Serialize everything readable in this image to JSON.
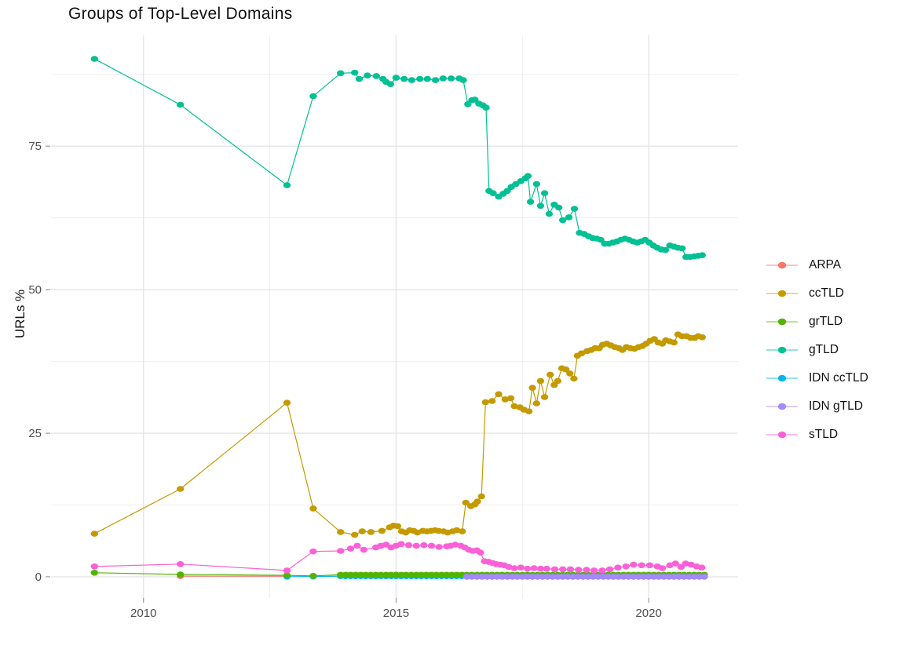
{
  "title": "Groups of Top-Level Domains",
  "chart_data": {
    "type": "line",
    "title": "Groups of Top-Level Domains",
    "xlabel": "",
    "ylabel": "URLs %",
    "grid": true,
    "legend_position": "right",
    "xlim": [
      2008.17,
      2021.77
    ],
    "ylim": [
      -3.7,
      94.3
    ],
    "x_ticks": [
      2010,
      2015,
      2020
    ],
    "x_minor_ticks": [
      2012.5,
      2017.5
    ],
    "y_ticks": [
      0,
      25,
      50,
      75
    ],
    "y_minor_ticks": [
      12.5,
      37.5,
      62.5,
      87.5
    ],
    "colors": {
      "grid_major": "#e5e5e5",
      "grid_minor": "#efefef",
      "tick_mark": "#9a9a9a",
      "tick_text": "#4d4d4d",
      "title_text": "#111111"
    },
    "draw_order": [
      "ARPA",
      "IDN ccTLD",
      "grTLD",
      "IDN gTLD",
      "ccTLD",
      "gTLD",
      "sTLD"
    ],
    "series": [
      {
        "name": "ARPA",
        "color": "#F8766D",
        "points": [
          [
            2010.73,
            0.12
          ],
          [
            2012.84,
            0.08
          ]
        ]
      },
      {
        "name": "ccTLD",
        "color": "#C49A00",
        "points": [
          [
            2009.03,
            7.5
          ],
          [
            2010.73,
            15.3
          ],
          [
            2012.84,
            30.3
          ],
          [
            2013.36,
            11.9
          ],
          [
            2013.9,
            7.8
          ],
          [
            2014.18,
            7.3
          ],
          [
            2014.33,
            7.9
          ],
          [
            2014.5,
            7.8
          ],
          [
            2014.72,
            8.0
          ],
          [
            2014.87,
            8.6
          ],
          [
            2014.95,
            8.9
          ],
          [
            2015.03,
            8.8
          ],
          [
            2015.11,
            7.9
          ],
          [
            2015.19,
            7.7
          ],
          [
            2015.27,
            8.1
          ],
          [
            2015.35,
            8.0
          ],
          [
            2015.42,
            7.7
          ],
          [
            2015.53,
            8.0
          ],
          [
            2015.61,
            7.9
          ],
          [
            2015.69,
            8.0
          ],
          [
            2015.77,
            8.1
          ],
          [
            2015.84,
            8.0
          ],
          [
            2015.94,
            7.9
          ],
          [
            2016.02,
            7.7
          ],
          [
            2016.12,
            7.9
          ],
          [
            2016.2,
            8.1
          ],
          [
            2016.31,
            7.9
          ],
          [
            2016.38,
            12.9
          ],
          [
            2016.48,
            12.3
          ],
          [
            2016.56,
            12.6
          ],
          [
            2016.61,
            13.1
          ],
          [
            2016.69,
            14.0
          ],
          [
            2016.77,
            30.4
          ],
          [
            2016.9,
            30.6
          ],
          [
            2017.03,
            31.8
          ],
          [
            2017.16,
            30.9
          ],
          [
            2017.27,
            31.1
          ],
          [
            2017.34,
            29.7
          ],
          [
            2017.45,
            29.5
          ],
          [
            2017.53,
            29.1
          ],
          [
            2017.63,
            28.8
          ],
          [
            2017.7,
            32.9
          ],
          [
            2017.78,
            30.2
          ],
          [
            2017.86,
            34.1
          ],
          [
            2017.94,
            31.3
          ],
          [
            2018.05,
            35.2
          ],
          [
            2018.13,
            33.4
          ],
          [
            2018.2,
            34.1
          ],
          [
            2018.28,
            36.3
          ],
          [
            2018.36,
            36.1
          ],
          [
            2018.44,
            35.4
          ],
          [
            2018.52,
            34.5
          ],
          [
            2018.59,
            38.5
          ],
          [
            2018.67,
            38.9
          ],
          [
            2018.78,
            39.3
          ],
          [
            2018.86,
            39.5
          ],
          [
            2018.94,
            39.8
          ],
          [
            2019.02,
            39.8
          ],
          [
            2019.09,
            40.4
          ],
          [
            2019.17,
            40.6
          ],
          [
            2019.25,
            40.3
          ],
          [
            2019.33,
            40.0
          ],
          [
            2019.41,
            39.8
          ],
          [
            2019.48,
            39.5
          ],
          [
            2019.56,
            40.0
          ],
          [
            2019.64,
            39.8
          ],
          [
            2019.72,
            39.7
          ],
          [
            2019.8,
            40.0
          ],
          [
            2019.88,
            40.2
          ],
          [
            2019.95,
            40.6
          ],
          [
            2020.03,
            41.1
          ],
          [
            2020.11,
            41.4
          ],
          [
            2020.19,
            40.8
          ],
          [
            2020.27,
            40.6
          ],
          [
            2020.34,
            41.2
          ],
          [
            2020.42,
            41.0
          ],
          [
            2020.5,
            40.8
          ],
          [
            2020.58,
            42.2
          ],
          [
            2020.66,
            41.9
          ],
          [
            2020.75,
            41.9
          ],
          [
            2020.83,
            41.6
          ],
          [
            2020.91,
            41.6
          ],
          [
            2020.98,
            41.9
          ],
          [
            2021.06,
            41.7
          ]
        ]
      },
      {
        "name": "grTLD",
        "color": "#53B400",
        "points": [
          [
            2009.03,
            0.7
          ],
          [
            2010.73,
            0.4
          ],
          [
            2012.84,
            0.25
          ],
          [
            2013.36,
            0.15
          ]
        ],
        "flat": {
          "from": 2013.9,
          "to": 2021.1,
          "step": 0.1,
          "value": 0.35
        }
      },
      {
        "name": "gTLD",
        "color": "#00C094",
        "points": [
          [
            2009.03,
            90.2
          ],
          [
            2010.73,
            82.2
          ],
          [
            2012.84,
            68.2
          ],
          [
            2013.36,
            83.7
          ],
          [
            2013.9,
            87.7
          ],
          [
            2014.18,
            87.8
          ],
          [
            2014.27,
            86.7
          ],
          [
            2014.43,
            87.3
          ],
          [
            2014.61,
            87.2
          ],
          [
            2014.74,
            86.7
          ],
          [
            2014.8,
            86.2
          ],
          [
            2014.89,
            85.8
          ],
          [
            2015.0,
            86.9
          ],
          [
            2015.16,
            86.7
          ],
          [
            2015.31,
            86.5
          ],
          [
            2015.47,
            86.7
          ],
          [
            2015.62,
            86.7
          ],
          [
            2015.78,
            86.5
          ],
          [
            2015.93,
            86.8
          ],
          [
            2016.09,
            86.8
          ],
          [
            2016.25,
            86.8
          ],
          [
            2016.33,
            86.5
          ],
          [
            2016.42,
            82.3
          ],
          [
            2016.5,
            83.0
          ],
          [
            2016.56,
            83.1
          ],
          [
            2016.64,
            82.4
          ],
          [
            2016.72,
            82.1
          ],
          [
            2016.78,
            81.7
          ],
          [
            2016.84,
            67.2
          ],
          [
            2016.92,
            66.8
          ],
          [
            2017.03,
            66.2
          ],
          [
            2017.12,
            66.7
          ],
          [
            2017.2,
            67.2
          ],
          [
            2017.28,
            67.9
          ],
          [
            2017.37,
            68.4
          ],
          [
            2017.47,
            68.9
          ],
          [
            2017.56,
            69.4
          ],
          [
            2017.61,
            69.8
          ],
          [
            2017.66,
            65.3
          ],
          [
            2017.78,
            68.4
          ],
          [
            2017.86,
            64.6
          ],
          [
            2017.94,
            66.8
          ],
          [
            2018.03,
            63.2
          ],
          [
            2018.13,
            64.8
          ],
          [
            2018.22,
            64.3
          ],
          [
            2018.3,
            62.1
          ],
          [
            2018.42,
            62.6
          ],
          [
            2018.53,
            64.1
          ],
          [
            2018.63,
            59.9
          ],
          [
            2018.72,
            59.7
          ],
          [
            2018.81,
            59.3
          ],
          [
            2018.89,
            59.0
          ],
          [
            2018.97,
            58.9
          ],
          [
            2019.05,
            58.7
          ],
          [
            2019.13,
            58.0
          ],
          [
            2019.21,
            58.0
          ],
          [
            2019.29,
            58.2
          ],
          [
            2019.37,
            58.4
          ],
          [
            2019.45,
            58.7
          ],
          [
            2019.53,
            58.9
          ],
          [
            2019.61,
            58.7
          ],
          [
            2019.69,
            58.4
          ],
          [
            2019.77,
            58.2
          ],
          [
            2019.85,
            58.4
          ],
          [
            2019.93,
            58.7
          ],
          [
            2020.01,
            58.2
          ],
          [
            2020.09,
            57.7
          ],
          [
            2020.17,
            57.3
          ],
          [
            2020.25,
            57.0
          ],
          [
            2020.33,
            56.9
          ],
          [
            2020.42,
            57.7
          ],
          [
            2020.5,
            57.5
          ],
          [
            2020.58,
            57.3
          ],
          [
            2020.66,
            57.2
          ],
          [
            2020.74,
            55.7
          ],
          [
            2020.82,
            55.7
          ],
          [
            2020.9,
            55.8
          ],
          [
            2020.98,
            55.9
          ],
          [
            2021.06,
            56.0
          ]
        ]
      },
      {
        "name": "IDN ccTLD",
        "color": "#00B6EB",
        "points": [
          [
            2012.84,
            0.02
          ],
          [
            2013.36,
            0.05
          ]
        ],
        "flat": {
          "from": 2013.9,
          "to": 2021.1,
          "step": 0.1,
          "value": 0.1
        }
      },
      {
        "name": "IDN gTLD",
        "color": "#A58AFF",
        "points": [],
        "flat": {
          "from": 2016.4,
          "to": 2021.1,
          "step": 0.1,
          "value": 0.0
        }
      },
      {
        "name": "sTLD",
        "color": "#FB61D7",
        "points": [
          [
            2009.03,
            1.8
          ],
          [
            2010.73,
            2.2
          ],
          [
            2012.84,
            1.1
          ],
          [
            2013.36,
            4.4
          ],
          [
            2013.9,
            4.5
          ],
          [
            2014.1,
            4.9
          ],
          [
            2014.23,
            5.4
          ],
          [
            2014.36,
            4.7
          ],
          [
            2014.6,
            5.1
          ],
          [
            2014.7,
            5.4
          ],
          [
            2014.8,
            5.6
          ],
          [
            2014.9,
            5.1
          ],
          [
            2015.0,
            5.4
          ],
          [
            2015.1,
            5.7
          ],
          [
            2015.25,
            5.5
          ],
          [
            2015.4,
            5.4
          ],
          [
            2015.55,
            5.5
          ],
          [
            2015.7,
            5.4
          ],
          [
            2015.85,
            5.2
          ],
          [
            2016.0,
            5.3
          ],
          [
            2016.08,
            5.4
          ],
          [
            2016.17,
            5.6
          ],
          [
            2016.28,
            5.4
          ],
          [
            2016.36,
            5.1
          ],
          [
            2016.44,
            4.7
          ],
          [
            2016.52,
            4.5
          ],
          [
            2016.6,
            4.6
          ],
          [
            2016.67,
            4.2
          ],
          [
            2016.75,
            2.7
          ],
          [
            2016.83,
            2.6
          ],
          [
            2016.91,
            2.4
          ],
          [
            2016.98,
            2.2
          ],
          [
            2017.06,
            2.1
          ],
          [
            2017.14,
            2.0
          ],
          [
            2017.23,
            1.7
          ],
          [
            2017.34,
            1.5
          ],
          [
            2017.47,
            1.6
          ],
          [
            2017.6,
            1.4
          ],
          [
            2017.73,
            1.5
          ],
          [
            2017.86,
            1.4
          ],
          [
            2017.98,
            1.4
          ],
          [
            2018.14,
            1.3
          ],
          [
            2018.3,
            1.3
          ],
          [
            2018.45,
            1.3
          ],
          [
            2018.61,
            1.2
          ],
          [
            2018.77,
            1.2
          ],
          [
            2018.92,
            1.1
          ],
          [
            2019.08,
            1.1
          ],
          [
            2019.23,
            1.3
          ],
          [
            2019.39,
            1.6
          ],
          [
            2019.55,
            1.8
          ],
          [
            2019.7,
            2.1
          ],
          [
            2019.86,
            2.0
          ],
          [
            2020.02,
            2.0
          ],
          [
            2020.17,
            1.8
          ],
          [
            2020.27,
            1.5
          ],
          [
            2020.42,
            2.0
          ],
          [
            2020.53,
            2.3
          ],
          [
            2020.64,
            1.7
          ],
          [
            2020.73,
            2.3
          ],
          [
            2020.84,
            2.1
          ],
          [
            2020.95,
            1.8
          ],
          [
            2021.05,
            1.6
          ]
        ]
      }
    ]
  }
}
